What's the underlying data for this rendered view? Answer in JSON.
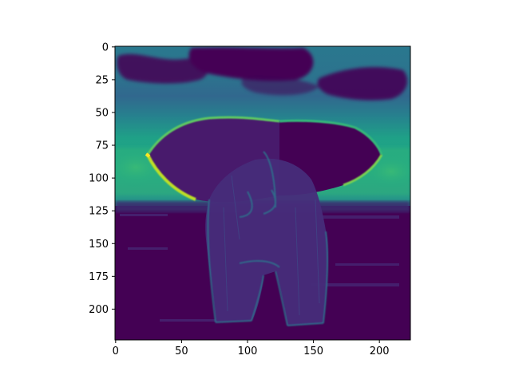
{
  "chart_data": {
    "type": "heatmap",
    "title": "",
    "xlabel": "",
    "ylabel": "",
    "xlim": [
      0,
      224
    ],
    "ylim": [
      224,
      0
    ],
    "xticks": [
      0,
      50,
      100,
      150,
      200
    ],
    "yticks": [
      0,
      25,
      50,
      75,
      100,
      125,
      150,
      175,
      200
    ],
    "colormap": "viridis",
    "value_range": [
      0,
      1
    ],
    "grid": false,
    "legend": "none",
    "image_regions": [
      {
        "region": "sky-upper",
        "y_range": [
          0,
          50
        ],
        "approx_value": 0.38
      },
      {
        "region": "dark-clouds",
        "y_range": [
          0,
          45
        ],
        "approx_value": 0.02
      },
      {
        "region": "sky-horizon-band",
        "y_range": [
          50,
          125
        ],
        "approx_value": 0.55
      },
      {
        "region": "ground",
        "y_range": [
          125,
          224
        ],
        "approx_value": 0.04
      },
      {
        "region": "elephant-body",
        "y_range": [
          55,
          212
        ],
        "approx_value": 0.08
      },
      {
        "region": "elephant-ear-edges",
        "y_range": [
          55,
          150
        ],
        "approx_value": 0.95
      }
    ]
  }
}
